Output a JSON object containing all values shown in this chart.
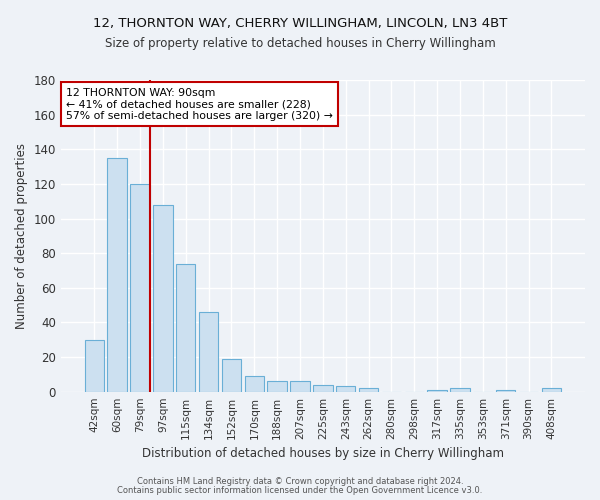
{
  "title1": "12, THORNTON WAY, CHERRY WILLINGHAM, LINCOLN, LN3 4BT",
  "title2": "Size of property relative to detached houses in Cherry Willingham",
  "xlabel": "Distribution of detached houses by size in Cherry Willingham",
  "ylabel": "Number of detached properties",
  "bar_labels": [
    "42sqm",
    "60sqm",
    "79sqm",
    "97sqm",
    "115sqm",
    "134sqm",
    "152sqm",
    "170sqm",
    "188sqm",
    "207sqm",
    "225sqm",
    "243sqm",
    "262sqm",
    "280sqm",
    "298sqm",
    "317sqm",
    "335sqm",
    "353sqm",
    "371sqm",
    "390sqm",
    "408sqm"
  ],
  "bar_values": [
    30,
    135,
    120,
    108,
    74,
    46,
    19,
    9,
    6,
    6,
    4,
    3,
    2,
    0,
    0,
    1,
    2,
    0,
    1,
    0,
    2
  ],
  "bar_color": "#cce0f0",
  "bar_edge_color": "#6aafd6",
  "vline_color": "#c00000",
  "annotation_title": "12 THORNTON WAY: 90sqm",
  "annotation_line1": "← 41% of detached houses are smaller (228)",
  "annotation_line2": "57% of semi-detached houses are larger (320) →",
  "annotation_box_color": "#ffffff",
  "annotation_box_edge": "#c00000",
  "ylim": [
    0,
    180
  ],
  "yticks": [
    0,
    20,
    40,
    60,
    80,
    100,
    120,
    140,
    160,
    180
  ],
  "footer1": "Contains HM Land Registry data © Crown copyright and database right 2024.",
  "footer2": "Contains public sector information licensed under the Open Government Licence v3.0.",
  "bg_color": "#eef2f7",
  "grid_color": "#ffffff"
}
